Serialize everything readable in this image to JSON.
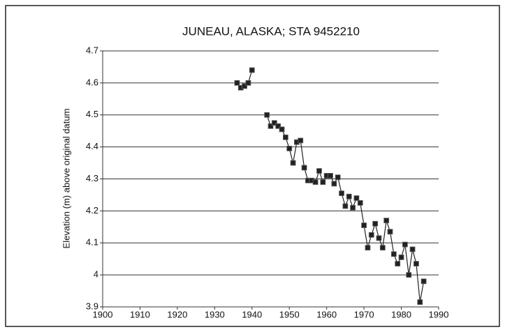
{
  "chart_data": {
    "type": "line",
    "title": "JUNEAU, ALASKA; STA 9452210",
    "y_label": "Elevation (m) above original datum",
    "x": [
      1936,
      1937,
      1938,
      1939,
      1940,
      1941,
      1942,
      1943,
      1944,
      1945,
      1946,
      1947,
      1948,
      1949,
      1950,
      1951,
      1952,
      1953,
      1954,
      1955,
      1956,
      1957,
      1958,
      1959,
      1960,
      1961,
      1962,
      1963,
      1964,
      1965,
      1966,
      1967,
      1968,
      1969,
      1970,
      1971,
      1972,
      1973,
      1974,
      1975,
      1976,
      1977,
      1978,
      1979,
      1980,
      1981,
      1982,
      1983,
      1984,
      1985,
      1986
    ],
    "series": [
      {
        "name": "Elevation",
        "color": "#222222",
        "values": [
          4.6,
          4.585,
          4.59,
          4.6,
          4.64,
          null,
          null,
          null,
          4.5,
          4.465,
          4.475,
          4.465,
          4.455,
          4.43,
          4.395,
          4.35,
          4.415,
          4.42,
          4.335,
          4.295,
          4.295,
          4.29,
          4.325,
          4.29,
          4.31,
          4.31,
          4.285,
          4.305,
          4.255,
          4.215,
          4.245,
          4.21,
          4.24,
          4.225,
          4.155,
          4.085,
          4.125,
          4.16,
          4.115,
          4.085,
          4.17,
          4.135,
          4.065,
          4.035,
          4.055,
          4.095,
          4.0,
          4.08,
          4.035,
          3.915,
          3.98
        ]
      }
    ],
    "xlim": [
      1900,
      1990
    ],
    "xticks": [
      1900,
      1910,
      1920,
      1930,
      1940,
      1950,
      1960,
      1970,
      1980,
      1990
    ],
    "ylim": [
      3.9,
      4.7
    ],
    "yticks": [
      3.9,
      4,
      4.1,
      4.2,
      4.3,
      4.4,
      4.5,
      4.6,
      4.7
    ],
    "grid": true
  }
}
